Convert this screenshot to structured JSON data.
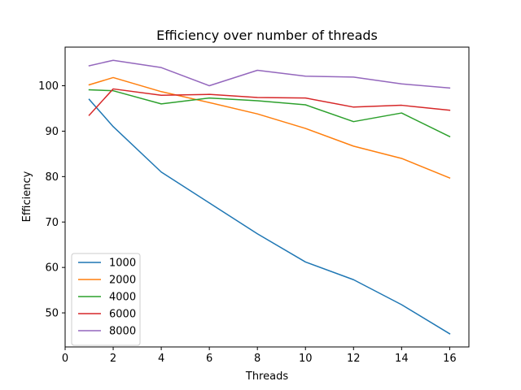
{
  "chart_data": {
    "type": "line",
    "title": "Efficiency over number of threads",
    "xlabel": "Threads",
    "ylabel": "Efficiency",
    "xlim": [
      0,
      16.8
    ],
    "ylim": [
      42.5,
      108.5
    ],
    "xticks": [
      0,
      2,
      4,
      6,
      8,
      10,
      12,
      14,
      16
    ],
    "yticks": [
      50,
      60,
      70,
      80,
      90,
      100
    ],
    "x": [
      1,
      2,
      4,
      6,
      8,
      10,
      12,
      14,
      16
    ],
    "grid": false,
    "legend_position": "lower-left",
    "series": [
      {
        "name": "1000",
        "color": "#1f77b4",
        "values": [
          97.0,
          91.0,
          81.0,
          74.2,
          67.4,
          61.2,
          57.3,
          51.8,
          45.4
        ]
      },
      {
        "name": "2000",
        "color": "#ff7f0e",
        "values": [
          100.2,
          101.8,
          98.7,
          96.3,
          93.8,
          90.6,
          86.7,
          84.0,
          79.7
        ]
      },
      {
        "name": "4000",
        "color": "#2ca02c",
        "values": [
          99.1,
          98.9,
          96.0,
          97.3,
          96.7,
          95.8,
          92.1,
          94.0,
          88.8
        ]
      },
      {
        "name": "6000",
        "color": "#d62728",
        "values": [
          93.5,
          99.3,
          97.9,
          98.1,
          97.4,
          97.3,
          95.3,
          95.7,
          94.6
        ]
      },
      {
        "name": "8000",
        "color": "#9467bd",
        "values": [
          104.4,
          105.6,
          104.0,
          100.0,
          103.4,
          102.1,
          101.9,
          100.4,
          99.5
        ]
      }
    ]
  }
}
